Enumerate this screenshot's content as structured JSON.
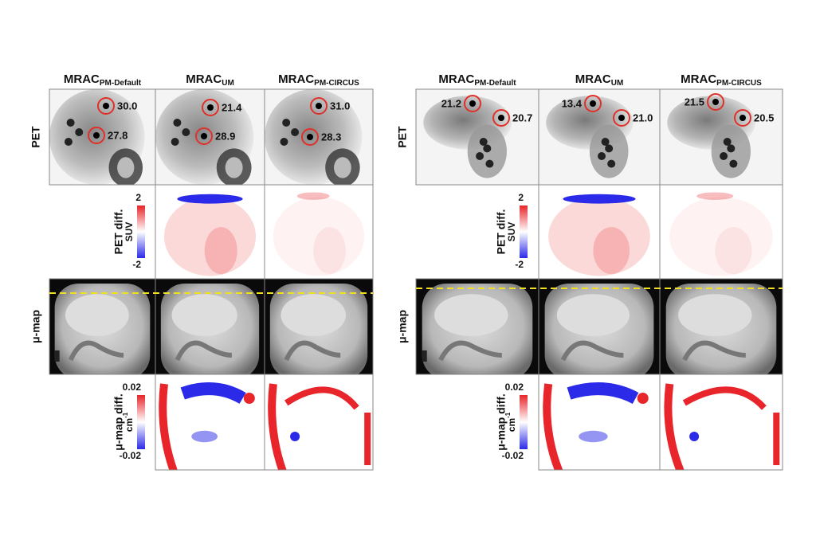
{
  "figure": {
    "columns": [
      {
        "name": "MRAC",
        "subscript": "PM-Default"
      },
      {
        "name": "MRAC",
        "subscript": "UM"
      },
      {
        "name": "MRAC",
        "subscript": "PM-CIRCUS"
      }
    ],
    "rows": [
      "PET",
      "PET diff.",
      "μ-map",
      "μ-map diff."
    ],
    "pet_colorbar": {
      "max": "2",
      "min": "-2",
      "unit": "SUV"
    },
    "mu_colorbar": {
      "max": "0.02",
      "min": "-0.02",
      "unit": "cm",
      "unit_exponent": "-1"
    },
    "panels": [
      {
        "lesions": [
          [
            "30.0",
            "27.8"
          ],
          [
            "21.4",
            "28.9"
          ],
          [
            "31.0",
            "28.3"
          ]
        ]
      },
      {
        "lesions": [
          [
            "21.2",
            "20.7"
          ],
          [
            "13.4",
            "21.0"
          ],
          [
            "21.5",
            "20.5"
          ]
        ]
      }
    ]
  }
}
